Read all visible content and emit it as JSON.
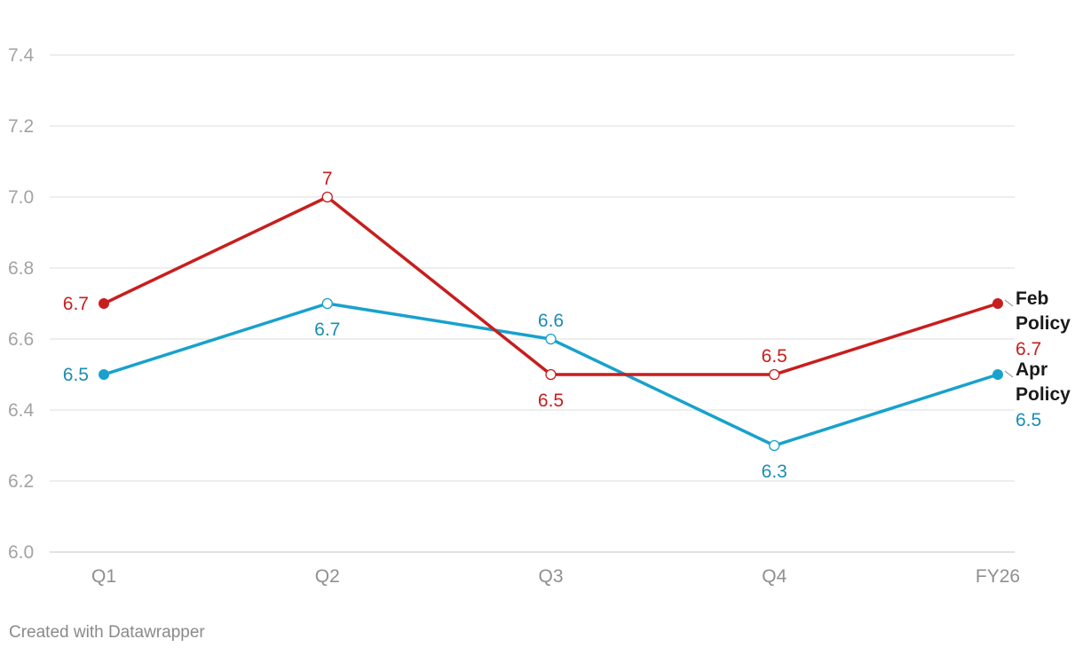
{
  "chart_data": {
    "type": "line",
    "categories": [
      "Q1",
      "Q2",
      "Q3",
      "Q4",
      "FY26"
    ],
    "ylim": [
      6.0,
      7.4
    ],
    "yticks": [
      "6.0",
      "6.2",
      "6.4",
      "6.6",
      "6.8",
      "7.0",
      "7.2",
      "7.4"
    ],
    "grid": true,
    "series": [
      {
        "name": "Feb Policy",
        "legend_line1": "Feb",
        "legend_line2": "Policy",
        "color": "#c71e1d",
        "values": [
          6.7,
          7.0,
          6.5,
          6.5,
          6.7
        ],
        "labels": [
          "6.7",
          "7",
          "6.5",
          "6.5",
          "6.7"
        ]
      },
      {
        "name": "Apr Policy",
        "legend_line1": "Apr",
        "legend_line2": "Policy",
        "color": "#18a1cd",
        "label_color": "#1a8db3",
        "values": [
          6.5,
          6.7,
          6.6,
          6.3,
          6.5
        ],
        "labels": [
          "6.5",
          "6.7",
          "6.6",
          "6.3",
          "6.5"
        ]
      }
    ]
  },
  "footer": {
    "credit": "Created with Datawrapper"
  }
}
